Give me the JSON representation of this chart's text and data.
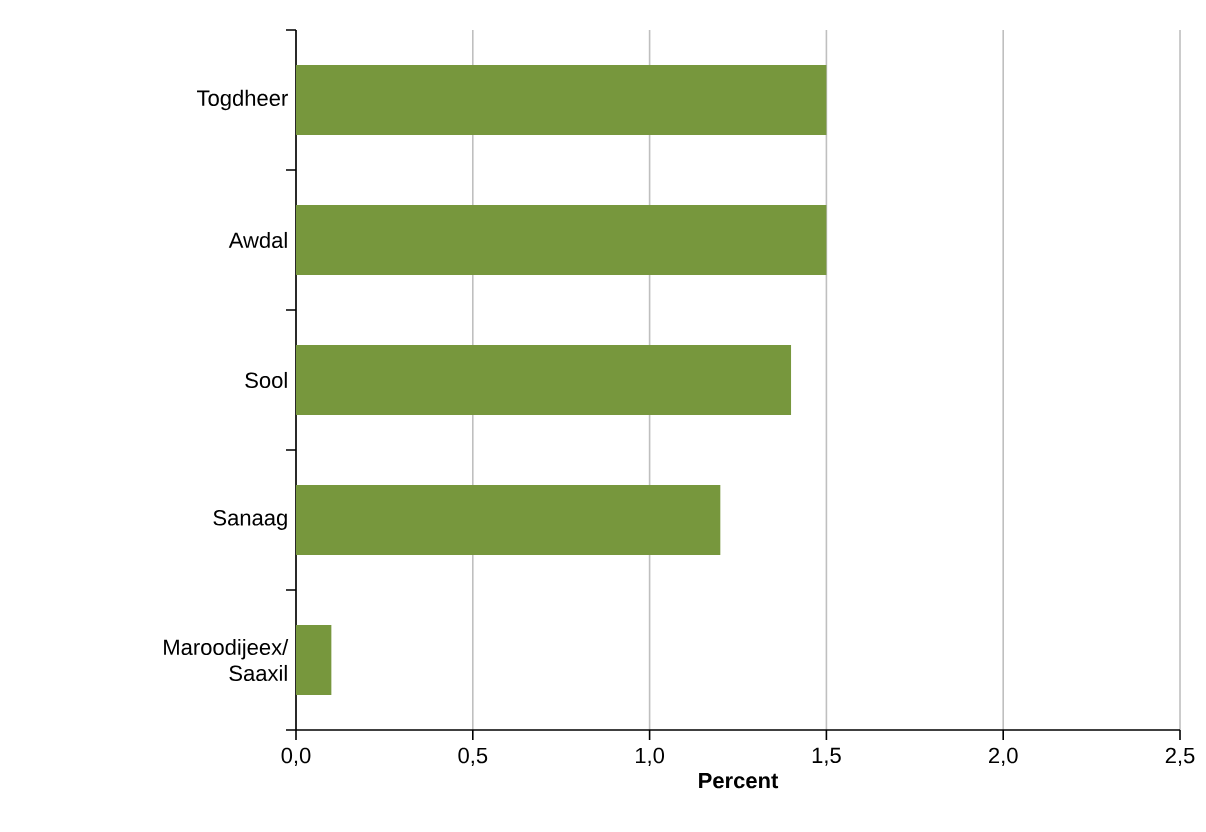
{
  "chart_data": {
    "type": "bar",
    "orientation": "horizontal",
    "xlabel": "Percent",
    "categories": [
      "Togdheer",
      "Awdal",
      "Sool",
      "Sanaag",
      "Maroodijeex/ Saaxil"
    ],
    "values": [
      1.5,
      1.5,
      1.4,
      1.2,
      0.1
    ],
    "color": "#77973d",
    "xlim": [
      0,
      2.5
    ],
    "xticks": [
      {
        "value": 0,
        "label": "0,0"
      },
      {
        "value": 0.5,
        "label": "0,5"
      },
      {
        "value": 1,
        "label": "1,0"
      },
      {
        "value": 1.5,
        "label": "1,5"
      },
      {
        "value": 2,
        "label": "2,0"
      },
      {
        "value": 2.5,
        "label": "2,5"
      }
    ],
    "grid": "x"
  }
}
